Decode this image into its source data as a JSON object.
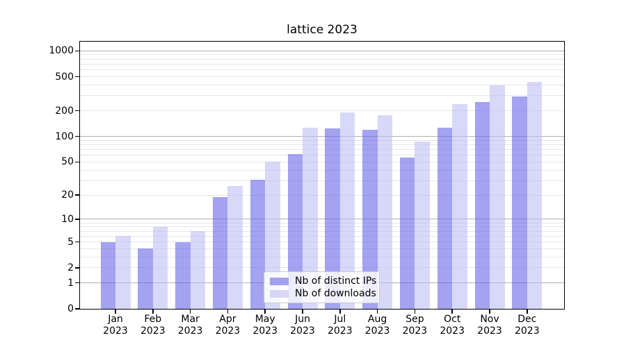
{
  "chart_data": {
    "type": "bar",
    "title": "lattice 2023",
    "categories": [
      "Jan",
      "Feb",
      "Mar",
      "Apr",
      "May",
      "Jun",
      "Jul",
      "Aug",
      "Sep",
      "Oct",
      "Nov",
      "Dec"
    ],
    "x_tick_second_line": "2023",
    "series": [
      {
        "name": "Nb of distinct IPs",
        "color": "#6666e899",
        "values": [
          5,
          4,
          5,
          19,
          31,
          62,
          125,
          119,
          57,
          128,
          254,
          295
        ]
      },
      {
        "name": "Nb of downloads",
        "color": "#bebef399",
        "values": [
          6,
          8,
          7,
          26,
          50,
          127,
          193,
          179,
          88,
          238,
          400,
          437
        ]
      }
    ],
    "y_axis": {
      "scale": "log1p",
      "tick_values": [
        0,
        1,
        2,
        5,
        10,
        20,
        50,
        100,
        200,
        500,
        1000
      ],
      "tick_labels": [
        "0",
        "1",
        "2",
        "5",
        "10",
        "20",
        "50",
        "100",
        "200",
        "500",
        "1000"
      ],
      "gridlines_major": [
        1,
        10,
        100,
        1000
      ],
      "gridlines_minor": [
        2,
        3,
        4,
        5,
        6,
        7,
        8,
        9,
        20,
        30,
        40,
        50,
        60,
        70,
        80,
        90,
        200,
        300,
        400,
        500,
        600,
        700,
        800,
        900
      ],
      "ylim": [
        0,
        1300
      ]
    },
    "xlabel": "",
    "ylabel": "",
    "grid": true,
    "legend_position": "lower-center",
    "colors": {
      "grid_major": "#b0b0b0",
      "grid_minor": "#e7e7e7",
      "spine": "#000000",
      "background": "#ffffff",
      "text": "#000000"
    }
  }
}
